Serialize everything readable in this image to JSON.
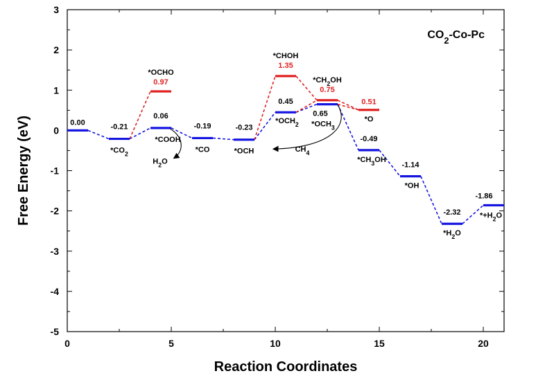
{
  "chart_data": {
    "type": "line",
    "title": "CO2-Co-Pc",
    "title_parts": {
      "base": "CO",
      "sub": "2",
      "rest": "-Co-Pc"
    },
    "title_position": "top-right",
    "xlabel": "Reaction Coordinates",
    "ylabel": "Free Energy (eV)",
    "xlim": [
      0,
      21
    ],
    "ylim": [
      -5,
      3
    ],
    "xticks": [
      "0",
      "5",
      "10",
      "15",
      "20"
    ],
    "yticks": [
      "-5",
      "-4",
      "-3",
      "-2",
      "-1",
      "0",
      "1",
      "2",
      "3"
    ],
    "grid": false,
    "colors": {
      "main": "#1515e0",
      "side": "#e02020",
      "axis": "#000000",
      "arrow": "#000000"
    },
    "series": [
      {
        "name": "main pathway",
        "color": "#1515e0",
        "levels": [
          {
            "x0": 0,
            "x1": 1,
            "y": 0.0,
            "value": "0.00",
            "species": [
              {
                "t": ""
              }
            ]
          },
          {
            "x0": 2,
            "x1": 3,
            "y": -0.21,
            "value": "-0.21",
            "species": [
              {
                "t": "*CO"
              },
              {
                "t": "2",
                "sub": true
              }
            ]
          },
          {
            "x0": 4,
            "x1": 5,
            "y": 0.06,
            "value": "0.06",
            "species": [
              {
                "t": "*COOH"
              }
            ]
          },
          {
            "x0": 6,
            "x1": 7,
            "y": -0.19,
            "value": "-0.19",
            "species": [
              {
                "t": "*CO"
              }
            ]
          },
          {
            "x0": 8,
            "x1": 9,
            "y": -0.23,
            "value": "-0.23",
            "species": [
              {
                "t": "*OCH"
              }
            ]
          },
          {
            "x0": 10,
            "x1": 11,
            "y": 0.45,
            "value": "0.45",
            "species": [
              {
                "t": "*OCH"
              },
              {
                "t": "2",
                "sub": true
              }
            ]
          },
          {
            "x0": 12,
            "x1": 13,
            "y": 0.65,
            "value": "0.65",
            "species": [
              {
                "t": "*OCH"
              },
              {
                "t": "3",
                "sub": true
              }
            ]
          },
          {
            "x0": 14,
            "x1": 15,
            "y": -0.49,
            "value": "-0.49",
            "species": [
              {
                "t": "*CH"
              },
              {
                "t": "3",
                "sub": true
              },
              {
                "t": "OH"
              }
            ]
          },
          {
            "x0": 16,
            "x1": 17,
            "y": -1.14,
            "value": "-1.14",
            "species": [
              {
                "t": "*OH"
              }
            ]
          },
          {
            "x0": 18,
            "x1": 19,
            "y": -2.32,
            "value": "-2.32",
            "species": [
              {
                "t": "*H"
              },
              {
                "t": "2",
                "sub": true
              },
              {
                "t": "O"
              }
            ]
          },
          {
            "x0": 20,
            "x1": 21,
            "y": -1.86,
            "value": "-1.86",
            "species": [
              {
                "t": "*+H"
              },
              {
                "t": "2",
                "sub": true
              },
              {
                "t": "O"
              }
            ]
          }
        ]
      },
      {
        "name": "side intermediates",
        "color": "#e02020",
        "levels": [
          {
            "x0": 4,
            "x1": 5,
            "y": 0.97,
            "value": "0.97",
            "species": [
              {
                "t": "*OCHO"
              }
            ]
          },
          {
            "x0": 10,
            "x1": 11,
            "y": 1.35,
            "value": "1.35",
            "species": [
              {
                "t": "*CHOH"
              }
            ]
          },
          {
            "x0": 12,
            "x1": 13,
            "y": 0.75,
            "value": "0.75",
            "species": [
              {
                "t": "*CH"
              },
              {
                "t": "2",
                "sub": true
              },
              {
                "t": "OH"
              }
            ]
          },
          {
            "x0": 14,
            "x1": 15,
            "y": 0.51,
            "value": "0.51",
            "species": [
              {
                "t": "*O"
              }
            ]
          }
        ]
      }
    ],
    "annotations": [
      {
        "name": "h2o-release",
        "parts": [
          {
            "t": "H"
          },
          {
            "t": "2",
            "sub": true
          },
          {
            "t": "O"
          }
        ]
      },
      {
        "name": "ch4-release",
        "parts": [
          {
            "t": "CH"
          },
          {
            "t": "4",
            "sub": true
          }
        ]
      }
    ]
  }
}
